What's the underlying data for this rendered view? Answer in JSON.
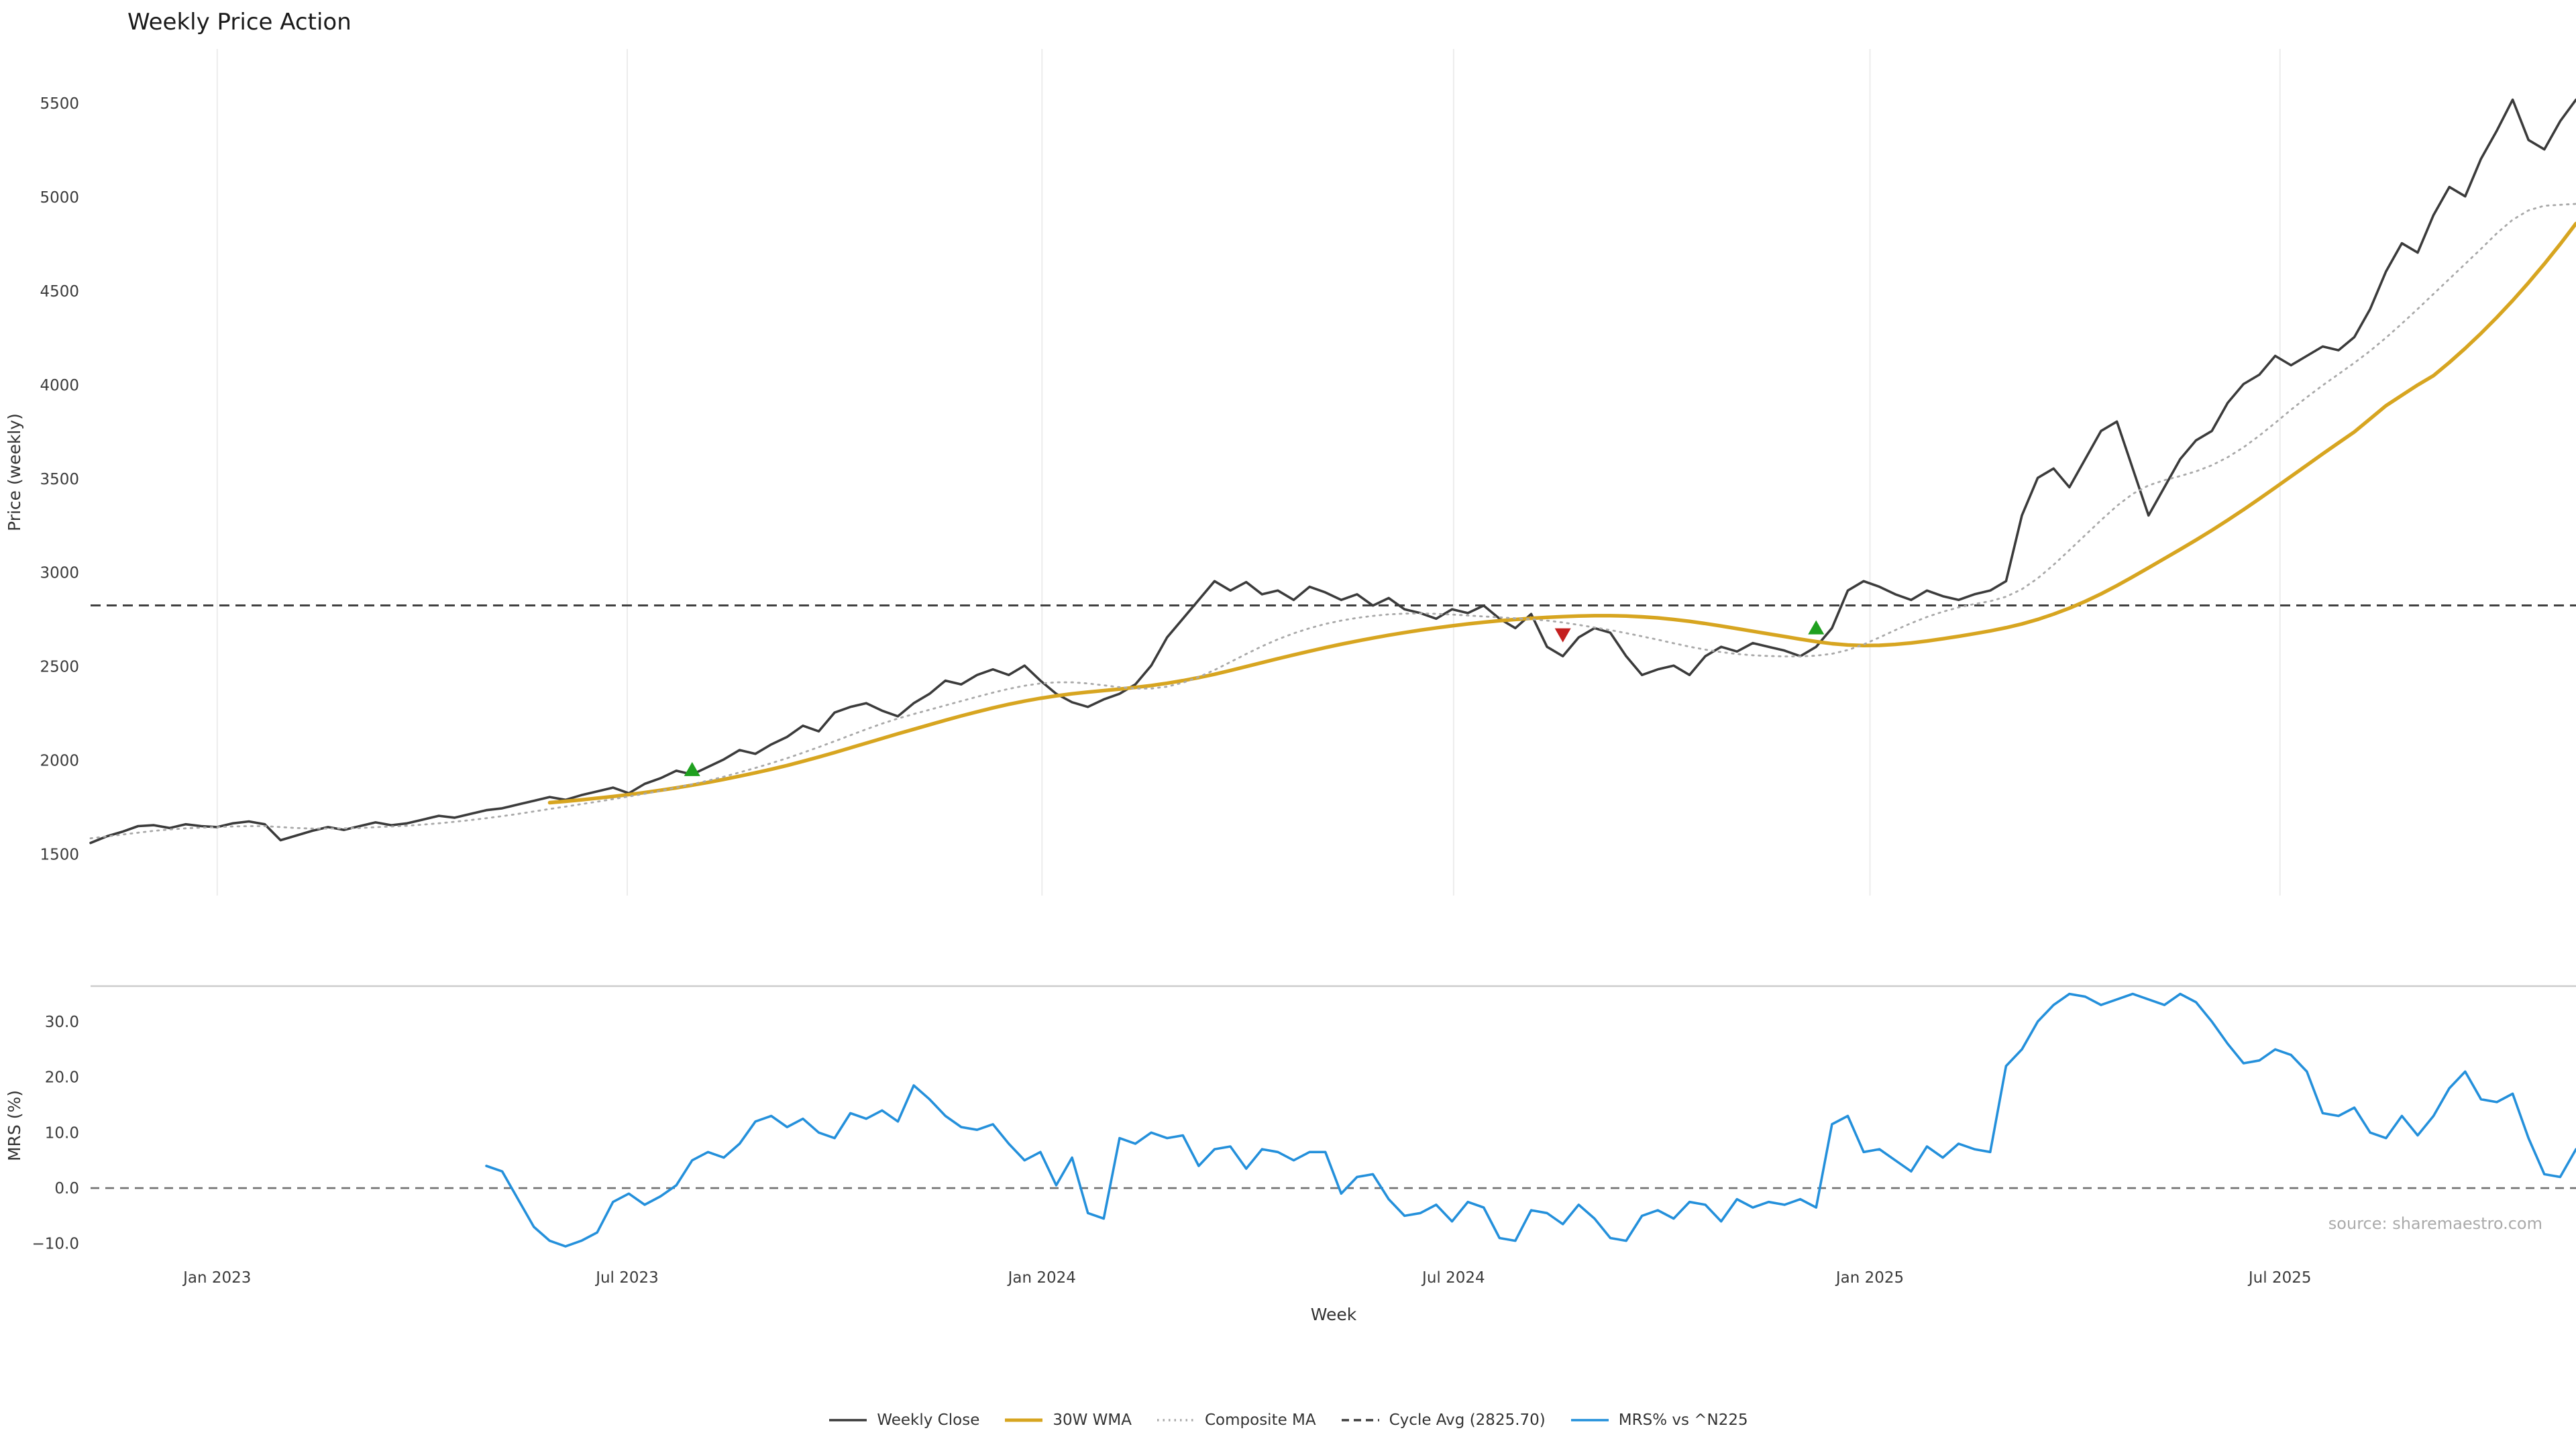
{
  "title": "Weekly Price Action",
  "source_note": "source: sharemaestro.com",
  "legend": [
    {
      "label": "Weekly Close",
      "color": "#3b3b3b",
      "style": "solid"
    },
    {
      "label": "30W WMA",
      "color": "#d7a520",
      "style": "solid"
    },
    {
      "label": "Composite MA",
      "color": "#a9a9a9",
      "style": "dotted"
    },
    {
      "label": "Cycle Avg (2825.70)",
      "color": "#404040",
      "style": "dashed"
    },
    {
      "label": "MRS% vs ^N225",
      "color": "#2490db",
      "style": "solid"
    }
  ],
  "chart_data": [
    {
      "type": "line",
      "title": "Weekly Price Action",
      "ylabel": "Price (weekly)",
      "grid": "vertical",
      "legend_position": "bottom-center",
      "total_weeks": 157,
      "x_start": "2022-11-06",
      "x_interval_days": 7,
      "x_ticks": [
        {
          "label": "Jan 2023",
          "week": 8.0
        },
        {
          "label": "Jul 2023",
          "week": 33.9
        },
        {
          "label": "Jan 2024",
          "week": 60.1
        },
        {
          "label": "Jul 2024",
          "week": 86.1
        },
        {
          "label": "Jan 2025",
          "week": 112.4
        },
        {
          "label": "Jul 2025",
          "week": 138.3
        }
      ],
      "ylim": [
        1280,
        5790
      ],
      "yticks": [
        1500,
        2000,
        2500,
        3000,
        3500,
        4000,
        4500,
        5000,
        5500
      ],
      "hline": {
        "label": "Cycle Avg (2825.70)",
        "value": 2825.7,
        "style": "dashed",
        "color": "#404040"
      },
      "series": [
        {
          "name": "Weekly Close",
          "color": "#3b3b3b",
          "style": "solid",
          "start_week": 0,
          "values": [
            1560,
            1595,
            1620,
            1650,
            1655,
            1640,
            1660,
            1650,
            1645,
            1665,
            1675,
            1660,
            1575,
            1600,
            1625,
            1645,
            1630,
            1650,
            1670,
            1655,
            1665,
            1685,
            1705,
            1695,
            1715,
            1735,
            1745,
            1765,
            1785,
            1805,
            1790,
            1815,
            1835,
            1855,
            1825,
            1875,
            1905,
            1945,
            1925,
            1965,
            2005,
            2055,
            2035,
            2085,
            2125,
            2185,
            2155,
            2255,
            2285,
            2305,
            2265,
            2235,
            2305,
            2355,
            2425,
            2405,
            2455,
            2485,
            2455,
            2505,
            2425,
            2355,
            2310,
            2285,
            2325,
            2355,
            2405,
            2505,
            2655,
            2755,
            2855,
            2955,
            2905,
            2950,
            2885,
            2905,
            2855,
            2925,
            2895,
            2855,
            2885,
            2825,
            2865,
            2805,
            2785,
            2755,
            2805,
            2785,
            2825,
            2755,
            2705,
            2780,
            2605,
            2555,
            2655,
            2705,
            2680,
            2555,
            2455,
            2485,
            2505,
            2455,
            2555,
            2605,
            2580,
            2625,
            2605,
            2585,
            2555,
            2605,
            2705,
            2905,
            2955,
            2925,
            2885,
            2855,
            2905,
            2875,
            2855,
            2885,
            2905,
            2955,
            3305,
            3505,
            3555,
            3455,
            3605,
            3755,
            3805,
            3555,
            3305,
            3455,
            3605,
            3705,
            3755,
            3905,
            4005,
            4055,
            4155,
            4105,
            4155,
            4205,
            4185,
            4255,
            4405,
            4605,
            4755,
            4705,
            4905,
            5055,
            5005,
            5205,
            5355,
            5520,
            5305,
            5255,
            5405,
            5520
          ]
        },
        {
          "name": "30W WMA",
          "color": "#d7a520",
          "style": "solid",
          "start_week": 29,
          "values": [
            1775,
            1782,
            1790,
            1799,
            1808,
            1818,
            1829,
            1841,
            1854,
            1868,
            1883,
            1899,
            1916,
            1934,
            1953,
            1973,
            1995,
            2018,
            2042,
            2067,
            2092,
            2117,
            2142,
            2166,
            2190,
            2214,
            2237,
            2259,
            2280,
            2299,
            2316,
            2331,
            2344,
            2355,
            2364,
            2372,
            2380,
            2389,
            2399,
            2411,
            2425,
            2441,
            2459,
            2479,
            2500,
            2521,
            2542,
            2562,
            2582,
            2601,
            2619,
            2636,
            2652,
            2667,
            2681,
            2694,
            2706,
            2717,
            2727,
            2736,
            2744,
            2751,
            2757,
            2762,
            2766,
            2769,
            2771,
            2771,
            2769,
            2765,
            2759,
            2751,
            2741,
            2729,
            2716,
            2702,
            2688,
            2674,
            2660,
            2646,
            2633,
            2622,
            2615,
            2612,
            2613,
            2618,
            2626,
            2636,
            2648,
            2661,
            2675,
            2690,
            2707,
            2727,
            2751,
            2779,
            2811,
            2847,
            2887,
            2931,
            2978,
            3026,
            3075,
            3124,
            3174,
            3226,
            3280,
            3336,
            3394,
            3453,
            3513,
            3573,
            3633,
            3692,
            3750,
            3820,
            3890,
            3945,
            4000,
            4050,
            4120,
            4195,
            4275,
            4360,
            4450,
            4545,
            4645,
            4750,
            4860
          ]
        },
        {
          "name": "Composite MA",
          "color": "#a9a9a9",
          "style": "dotted",
          "start_week": 0,
          "values": [
            1585,
            1595,
            1605,
            1615,
            1625,
            1632,
            1638,
            1642,
            1645,
            1648,
            1650,
            1650,
            1645,
            1640,
            1637,
            1637,
            1638,
            1640,
            1644,
            1648,
            1652,
            1658,
            1665,
            1673,
            1682,
            1692,
            1703,
            1715,
            1728,
            1741,
            1754,
            1767,
            1780,
            1794,
            1808,
            1822,
            1838,
            1855,
            1873,
            1892,
            1913,
            1936,
            1960,
            1985,
            2012,
            2041,
            2071,
            2102,
            2134,
            2166,
            2196,
            2223,
            2247,
            2270,
            2293,
            2316,
            2339,
            2361,
            2381,
            2398,
            2410,
            2416,
            2416,
            2410,
            2400,
            2390,
            2383,
            2383,
            2393,
            2414,
            2444,
            2482,
            2524,
            2567,
            2608,
            2645,
            2677,
            2704,
            2727,
            2745,
            2759,
            2770,
            2778,
            2782,
            2783,
            2781,
            2777,
            2772,
            2767,
            2762,
            2757,
            2752,
            2745,
            2735,
            2722,
            2708,
            2694,
            2678,
            2661,
            2643,
            2624,
            2606,
            2590,
            2577,
            2567,
            2560,
            2556,
            2554,
            2554,
            2558,
            2568,
            2588,
            2618,
            2655,
            2694,
            2731,
            2764,
            2792,
            2815,
            2833,
            2848,
            2872,
            2912,
            2970,
            3042,
            3120,
            3200,
            3280,
            3356,
            3420,
            3465,
            3493,
            3515,
            3540,
            3572,
            3615,
            3668,
            3730,
            3798,
            3868,
            3935,
            3998,
            4058,
            4118,
            4182,
            4252,
            4327,
            4405,
            4485,
            4565,
            4645,
            4725,
            4808,
            4880,
            4930,
            4955,
            4960,
            4965
          ]
        }
      ],
      "markers": [
        {
          "signal": "buy",
          "shape": "triangle-up",
          "color": "#1fa01f",
          "week": 38,
          "value": 1945
        },
        {
          "signal": "sell",
          "shape": "triangle-down",
          "color": "#c41f1f",
          "week": 93,
          "value": 2675
        },
        {
          "signal": "buy",
          "shape": "triangle-up",
          "color": "#1fa01f",
          "week": 109,
          "value": 2700
        }
      ]
    },
    {
      "type": "line",
      "ylabel": "MRS (%)",
      "xlabel": "Week",
      "total_weeks": 157,
      "ylim": [
        -13.9,
        36.4
      ],
      "yticks": [
        30,
        20,
        10,
        0,
        -10
      ],
      "ytick_labels": [
        "30.0",
        "20.0",
        "10.0",
        "0.0",
        "−10.0"
      ],
      "hline": {
        "value": 0,
        "style": "dashed",
        "color": "#707070"
      },
      "series": [
        {
          "name": "MRS% vs ^N225",
          "color": "#2490db",
          "style": "solid",
          "start_week": 25,
          "values": [
            4.0,
            3.0,
            -2.0,
            -7.0,
            -9.5,
            -10.5,
            -9.5,
            -8.0,
            -2.5,
            -1.0,
            -3.0,
            -1.5,
            0.5,
            5.0,
            6.5,
            5.5,
            8.0,
            12.0,
            13.0,
            11.0,
            12.5,
            10.0,
            9.0,
            13.5,
            12.5,
            14.0,
            12.0,
            18.5,
            16.0,
            13.0,
            11.0,
            10.5,
            11.5,
            8.0,
            5.0,
            6.5,
            0.5,
            5.5,
            -4.5,
            -5.5,
            9.0,
            8.0,
            10.0,
            9.0,
            9.5,
            4.0,
            7.0,
            7.5,
            3.5,
            7.0,
            6.5,
            5.0,
            6.5,
            6.5,
            -1.0,
            2.0,
            2.5,
            -2.0,
            -5.0,
            -4.5,
            -3.0,
            -6.0,
            -2.5,
            -3.5,
            -9.0,
            -9.5,
            -4.0,
            -4.5,
            -6.5,
            -3.0,
            -5.5,
            -9.0,
            -9.5,
            -5.0,
            -4.0,
            -5.5,
            -2.5,
            -3.0,
            -6.0,
            -2.0,
            -3.5,
            -2.5,
            -3.0,
            -2.0,
            -3.5,
            11.5,
            13.0,
            6.5,
            7.0,
            5.0,
            3.0,
            7.5,
            5.5,
            8.0,
            7.0,
            6.5,
            22.0,
            25.0,
            30.0,
            33.0,
            35.0,
            34.5,
            33.0,
            34.0,
            35.0,
            34.0,
            33.0,
            35.0,
            33.5,
            30.0,
            26.0,
            22.5,
            23.0,
            25.0,
            24.0,
            21.0,
            13.5,
            13.0,
            14.5,
            10.0,
            9.0,
            13.0,
            9.5,
            13.0,
            18.0,
            21.0,
            16.0,
            15.5,
            17.0,
            9.0,
            2.5,
            2.0,
            7.0
          ]
        }
      ]
    }
  ]
}
